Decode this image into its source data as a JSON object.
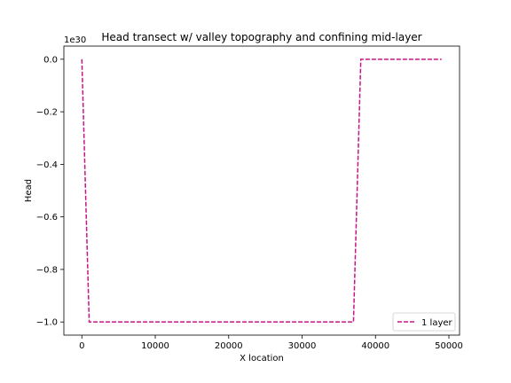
{
  "chart_data": {
    "type": "line",
    "title": "Head transect w/ valley topography and confining mid-layer",
    "xlabel": "X location",
    "ylabel": "Head",
    "y_offset_label": "1e30",
    "xlim": [
      -2450,
      51450
    ],
    "ylim": [
      -1.05,
      0.05
    ],
    "x_ticks": [
      0,
      10000,
      20000,
      30000,
      40000,
      50000
    ],
    "x_tick_labels": [
      "0",
      "10000",
      "20000",
      "30000",
      "40000",
      "50000"
    ],
    "y_ticks": [
      0.0,
      -0.2,
      -0.4,
      -0.6,
      -0.8,
      -1.0
    ],
    "y_tick_labels": [
      "0.0",
      "−0.2",
      "−0.4",
      "−0.6",
      "−0.8",
      "−1.0"
    ],
    "grid": false,
    "legend_position": "lower-right",
    "series": [
      {
        "name": "1 layer",
        "color": "#c71585",
        "line_style": "dashed",
        "x": [
          0,
          1000,
          37000,
          38000,
          49000
        ],
        "y": [
          0.0,
          -1.0,
          -1.0,
          0.0,
          0.0
        ]
      }
    ]
  }
}
